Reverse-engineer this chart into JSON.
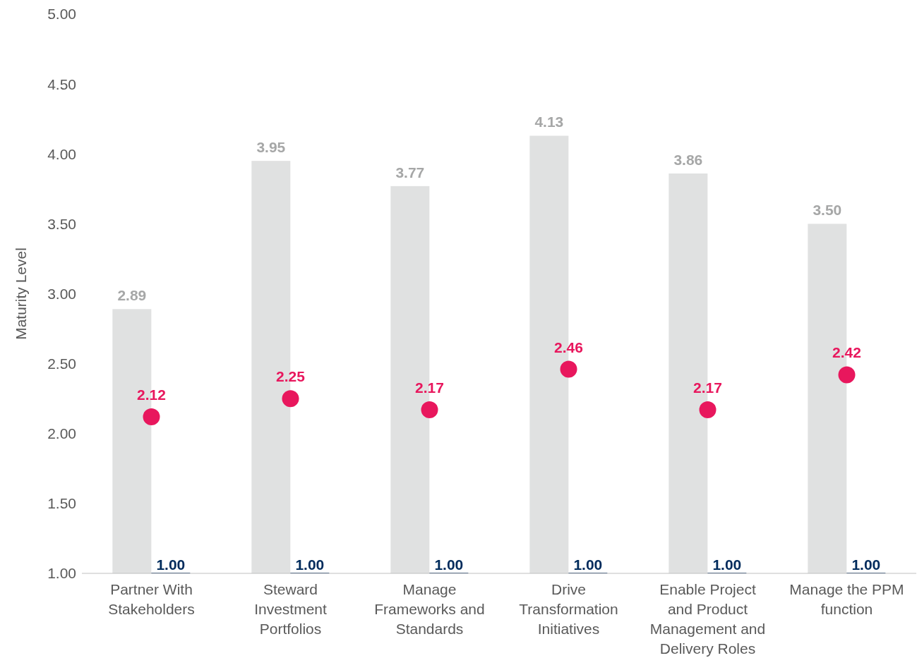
{
  "chart_data": {
    "type": "bar",
    "ylabel": "Maturity Level",
    "categories": [
      "Partner With Stakeholders",
      "Steward Investment Portfolios",
      "Manage Frameworks and Standards",
      "Drive Transformation Initiatives",
      "Enable Project and Product Management and Delivery Roles",
      "Manage the PPM function"
    ],
    "series": [
      {
        "color": "#e0e1e1",
        "values": [
          2.89,
          3.95,
          3.77,
          4.13,
          3.86,
          3.5
        ],
        "value_labels": [
          "2.89",
          "3.95",
          "3.77",
          "4.13",
          "3.86",
          "3.50"
        ]
      },
      {
        "color": "#002b5c",
        "values": [
          1.0,
          1.0,
          1.0,
          1.0,
          1.0,
          1.0
        ],
        "value_labels": [
          "1.00",
          "1.00",
          "1.00",
          "1.00",
          "1.00",
          "1.00"
        ]
      },
      {
        "type": "scatter",
        "color": "#e8175d",
        "values": [
          2.12,
          2.25,
          2.17,
          2.46,
          2.17,
          2.42
        ],
        "value_labels": [
          "2.12",
          "2.25",
          "2.17",
          "2.46",
          "2.17",
          "2.42"
        ]
      }
    ],
    "ylim": [
      1,
      5
    ],
    "yticks": [
      {
        "value": 1,
        "label": "1.00"
      },
      {
        "value": 1.5,
        "label": "1.50"
      },
      {
        "value": 2,
        "label": "2.00"
      },
      {
        "value": 2.5,
        "label": "2.50"
      },
      {
        "value": 3,
        "label": "3.00"
      },
      {
        "value": 3.5,
        "label": "3.50"
      },
      {
        "value": 4,
        "label": "4.00"
      },
      {
        "value": 4.5,
        "label": "4.50"
      },
      {
        "value": 5,
        "label": "5.00"
      }
    ],
    "grid": false,
    "legend": false,
    "marker": "circle"
  }
}
